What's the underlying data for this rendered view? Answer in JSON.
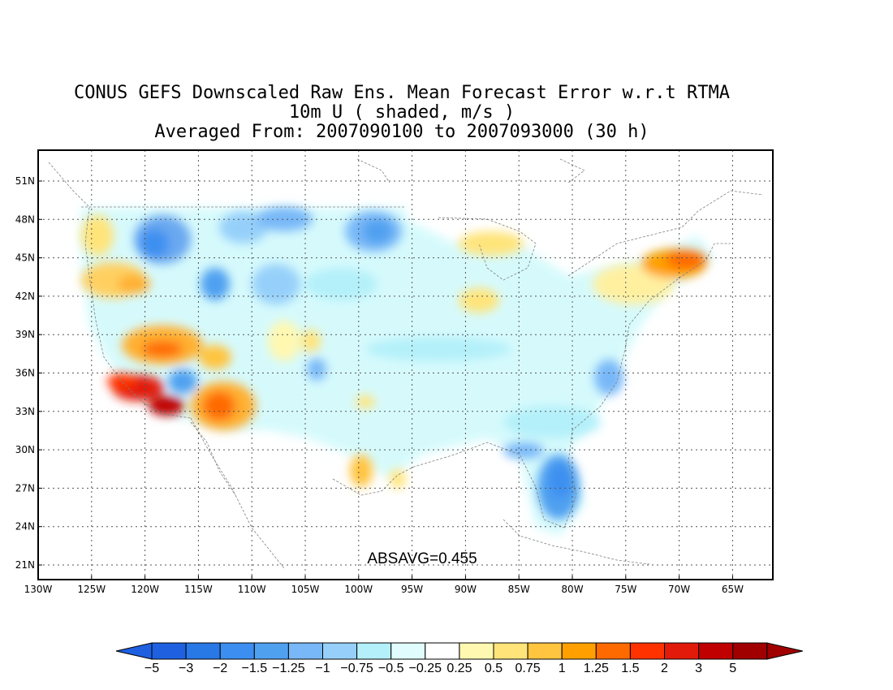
{
  "title": {
    "line1": "CONUS GEFS Downscaled Raw Ens. Mean Forecast Error w.r.t RTMA",
    "line2": "10m U ( shaded, m/s )",
    "line3": "Averaged From: 2007090100 to 2007093000 (30 h)"
  },
  "map": {
    "lat_labels": [
      "51N",
      "48N",
      "45N",
      "42N",
      "39N",
      "36N",
      "33N",
      "30N",
      "27N",
      "24N",
      "21N"
    ],
    "lon_labels": [
      "130W",
      "125W",
      "120W",
      "115W",
      "110W",
      "105W",
      "100W",
      "95W",
      "90W",
      "85W",
      "80W",
      "75W",
      "70W",
      "65W"
    ],
    "annotation": "ABSAVG=0.455",
    "grid": true
  },
  "colorbar": {
    "labels": [
      "−5",
      "−3",
      "−2",
      "−1.5",
      "−1.25",
      "−1",
      "−0.75",
      "−0.5",
      "−0.25",
      "0.25",
      "0.5",
      "0.75",
      "1",
      "1.25",
      "1.5",
      "2",
      "3",
      "5"
    ],
    "colors": [
      "#1e60e0",
      "#2878e6",
      "#3c8ff0",
      "#50a0f0",
      "#78b8f8",
      "#96d0fa",
      "#b4f0fa",
      "#e0fcfc",
      "#ffffff",
      "#fff8b0",
      "#ffe47a",
      "#ffc440",
      "#ffa000",
      "#ff6a00",
      "#ff3200",
      "#e11a0a",
      "#c00000",
      "#a00000"
    ],
    "left_arrow_color": "#1e60e0",
    "right_arrow_color": "#a00000"
  }
}
